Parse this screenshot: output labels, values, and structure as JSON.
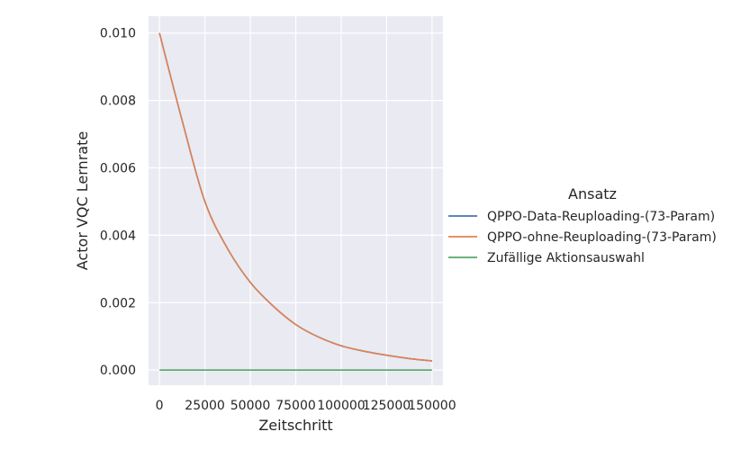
{
  "chart_data": {
    "type": "line",
    "title": "",
    "xlabel": "Zeitschritt",
    "ylabel": "Actor VQC Lernrate",
    "xlim": [
      -6000,
      156000
    ],
    "ylim": [
      -0.00045,
      0.0105
    ],
    "x_ticks": [
      0,
      25000,
      50000,
      75000,
      100000,
      125000,
      150000
    ],
    "x_tick_labels": [
      "0",
      "25000",
      "50000",
      "75000",
      "100000",
      "125000",
      "150000"
    ],
    "y_ticks": [
      0.0,
      0.002,
      0.004,
      0.006,
      0.008,
      0.01
    ],
    "y_tick_labels": [
      "0.000",
      "0.002",
      "0.004",
      "0.006",
      "0.008",
      "0.010"
    ],
    "grid": true,
    "legend_title": "Ansatz",
    "legend_position": "right",
    "background": "#eaeaf2",
    "series": [
      {
        "name": "QPPO-Data-Reuploading-(73-Param)",
        "color": "#4c72b0",
        "x": [
          0,
          12500,
          25000,
          37500,
          50000,
          62500,
          75000,
          87500,
          100000,
          112500,
          125000,
          137500,
          150000
        ],
        "y": [
          0.01,
          0.0074,
          0.005,
          0.0036,
          0.0026,
          0.0019,
          0.00135,
          0.00098,
          0.00072,
          0.00056,
          0.00044,
          0.00034,
          0.00027
        ]
      },
      {
        "name": "QPPO-ohne-Reuploading-(73-Param)",
        "color": "#dd8452",
        "x": [
          0,
          12500,
          25000,
          37500,
          50000,
          62500,
          75000,
          87500,
          100000,
          112500,
          125000,
          137500,
          150000
        ],
        "y": [
          0.01,
          0.0074,
          0.005,
          0.0036,
          0.0026,
          0.0019,
          0.00135,
          0.00098,
          0.00072,
          0.00056,
          0.00044,
          0.00034,
          0.00027
        ]
      },
      {
        "name": "Zufällige Aktionsauswahl",
        "color": "#55a868",
        "x": [
          0,
          150000
        ],
        "y": [
          0.0,
          0.0
        ]
      }
    ]
  }
}
